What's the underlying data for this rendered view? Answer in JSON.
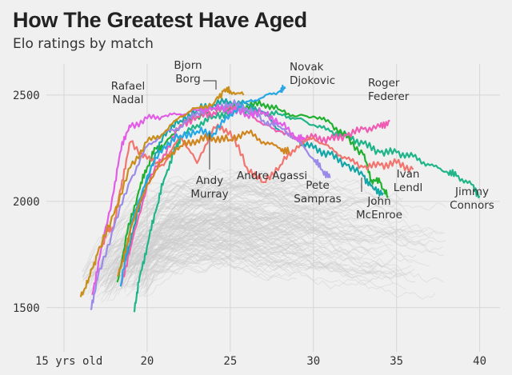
{
  "title": "How The Greatest Have Aged",
  "subtitle": "Elo ratings by match",
  "chart_data": {
    "type": "line",
    "title": "How The Greatest Have Aged",
    "subtitle": "Elo ratings by match",
    "xlabel": "",
    "ylabel": "",
    "xlim": [
      15,
      40.5
    ],
    "ylim": [
      1330,
      2590
    ],
    "xticks": [
      15,
      20,
      25,
      30,
      35,
      40
    ],
    "xtick_labels": [
      "15 yrs old",
      "20",
      "25",
      "30",
      "35",
      "40"
    ],
    "yticks": [
      1500,
      2000,
      2500
    ],
    "ytick_labels": [
      "1500",
      "2000",
      "2500"
    ],
    "grid": true,
    "background_series": {
      "name": "",
      "color": "#cccccc",
      "count": 150
    },
    "series": [
      {
        "name": "Jimmy Connors",
        "color": "#1fb589",
        "points": [
          [
            19.2,
            1480
          ],
          [
            19.5,
            1620
          ],
          [
            20,
            1790
          ],
          [
            20.5,
            1950
          ],
          [
            21,
            2100
          ],
          [
            21.6,
            2230
          ],
          [
            22,
            2300
          ],
          [
            23,
            2360
          ],
          [
            24,
            2400
          ],
          [
            25,
            2420
          ],
          [
            26,
            2430
          ],
          [
            27,
            2420
          ],
          [
            28,
            2410
          ],
          [
            29,
            2390
          ],
          [
            30,
            2360
          ],
          [
            31,
            2330
          ],
          [
            32,
            2310
          ],
          [
            33,
            2270
          ],
          [
            34,
            2230
          ],
          [
            35,
            2230
          ],
          [
            36,
            2210
          ],
          [
            37,
            2170
          ],
          [
            38,
            2140
          ],
          [
            38.6,
            2120
          ],
          [
            39.5,
            2080
          ],
          [
            40,
            2025
          ]
        ]
      },
      {
        "name": "Ivan Lendl",
        "color": "#21b02f",
        "points": [
          [
            18.2,
            1620
          ],
          [
            18.8,
            1850
          ],
          [
            19.5,
            2050
          ],
          [
            20,
            2160
          ],
          [
            20.5,
            2250
          ],
          [
            21,
            2260
          ],
          [
            22,
            2360
          ],
          [
            23,
            2400
          ],
          [
            24,
            2440
          ],
          [
            25,
            2440
          ],
          [
            26,
            2450
          ],
          [
            27,
            2460
          ],
          [
            28,
            2430
          ],
          [
            29,
            2400
          ],
          [
            30,
            2400
          ],
          [
            31,
            2370
          ],
          [
            32,
            2300
          ],
          [
            33,
            2220
          ],
          [
            33.5,
            2100
          ],
          [
            34,
            2090
          ],
          [
            34.5,
            2020
          ]
        ]
      },
      {
        "name": "John McEnroe",
        "color": "#15a6a8",
        "points": [
          [
            18.7,
            1720
          ],
          [
            19.2,
            1880
          ],
          [
            20,
            2100
          ],
          [
            21,
            2320
          ],
          [
            22,
            2380
          ],
          [
            23,
            2430
          ],
          [
            24,
            2460
          ],
          [
            25,
            2470
          ],
          [
            26,
            2460
          ],
          [
            27,
            2420
          ],
          [
            28,
            2330
          ],
          [
            29,
            2290
          ],
          [
            30,
            2250
          ],
          [
            31,
            2220
          ],
          [
            32,
            2170
          ],
          [
            33,
            2120
          ],
          [
            33.6,
            2060
          ],
          [
            34.2,
            2040
          ]
        ]
      },
      {
        "name": "Roger Federer",
        "color": "#ef5cb2",
        "points": [
          [
            18.4,
            1600
          ],
          [
            19,
            1780
          ],
          [
            20,
            2080
          ],
          [
            21,
            2220
          ],
          [
            22,
            2360
          ],
          [
            23,
            2400
          ],
          [
            24,
            2420
          ],
          [
            25,
            2450
          ],
          [
            26,
            2430
          ],
          [
            27,
            2360
          ],
          [
            28,
            2330
          ],
          [
            29,
            2290
          ],
          [
            30,
            2300
          ],
          [
            31,
            2290
          ],
          [
            32,
            2310
          ],
          [
            33,
            2340
          ],
          [
            34,
            2350
          ],
          [
            34.6,
            2380
          ]
        ]
      },
      {
        "name": "Andre Agassi",
        "color": "#f2746e",
        "points": [
          [
            17.2,
            1780
          ],
          [
            17.6,
            1860
          ],
          [
            18,
            1880
          ],
          [
            18.5,
            2100
          ],
          [
            19,
            2280
          ],
          [
            20,
            2200
          ],
          [
            21,
            2170
          ],
          [
            22,
            2310
          ],
          [
            23,
            2180
          ],
          [
            24,
            2350
          ],
          [
            25,
            2330
          ],
          [
            26,
            2160
          ],
          [
            27,
            2090
          ],
          [
            28,
            2170
          ],
          [
            29,
            2260
          ],
          [
            30,
            2300
          ],
          [
            31,
            2250
          ],
          [
            32,
            2200
          ],
          [
            33,
            2160
          ],
          [
            34,
            2170
          ],
          [
            35,
            2180
          ],
          [
            36,
            2150
          ]
        ]
      },
      {
        "name": "Pete Sampras",
        "color": "#9b8ae8",
        "points": [
          [
            16.6,
            1490
          ],
          [
            17,
            1630
          ],
          [
            18,
            1880
          ],
          [
            19,
            2100
          ],
          [
            20,
            2260
          ],
          [
            21,
            2320
          ],
          [
            22,
            2350
          ],
          [
            23,
            2420
          ],
          [
            24,
            2440
          ],
          [
            25,
            2460
          ],
          [
            26,
            2440
          ],
          [
            27,
            2380
          ],
          [
            28,
            2350
          ],
          [
            29,
            2290
          ],
          [
            30,
            2200
          ],
          [
            30.5,
            2150
          ],
          [
            31,
            2110
          ]
        ]
      },
      {
        "name": "Rafael Nadal",
        "color": "#e35ce6",
        "points": [
          [
            16.7,
            1560
          ],
          [
            17.2,
            1760
          ],
          [
            18,
            2050
          ],
          [
            18.5,
            2280
          ],
          [
            19,
            2350
          ],
          [
            20,
            2390
          ],
          [
            21,
            2400
          ],
          [
            22,
            2410
          ],
          [
            23,
            2430
          ],
          [
            24,
            2440
          ],
          [
            25,
            2430
          ],
          [
            26,
            2410
          ],
          [
            27,
            2420
          ],
          [
            28,
            2370
          ],
          [
            29,
            2300
          ],
          [
            29.5,
            2290
          ]
        ]
      },
      {
        "name": "Bjorn Borg",
        "color": "#c98f19",
        "points": [
          [
            16,
            1550
          ],
          [
            16.5,
            1640
          ],
          [
            17,
            1750
          ],
          [
            18,
            1940
          ],
          [
            19,
            2160
          ],
          [
            20,
            2280
          ],
          [
            21,
            2320
          ],
          [
            22,
            2400
          ],
          [
            23,
            2440
          ],
          [
            24,
            2460
          ],
          [
            24.6,
            2520
          ],
          [
            25,
            2520
          ],
          [
            25.8,
            2500
          ]
        ]
      },
      {
        "name": "Novak Djokovic",
        "color": "#27a8e6",
        "points": [
          [
            18.4,
            1600
          ],
          [
            19,
            1880
          ],
          [
            20,
            2120
          ],
          [
            21,
            2260
          ],
          [
            22,
            2310
          ],
          [
            23,
            2330
          ],
          [
            24,
            2320
          ],
          [
            25,
            2410
          ],
          [
            26,
            2470
          ],
          [
            27,
            2490
          ],
          [
            28,
            2520
          ],
          [
            28.3,
            2530
          ]
        ]
      },
      {
        "name": "Andy Murray",
        "color": "#d1851e",
        "points": [
          [
            18.2,
            1650
          ],
          [
            18.7,
            1760
          ],
          [
            19,
            1870
          ],
          [
            20,
            2080
          ],
          [
            21,
            2200
          ],
          [
            22,
            2260
          ],
          [
            23,
            2290
          ],
          [
            24,
            2300
          ],
          [
            25,
            2290
          ],
          [
            26,
            2330
          ],
          [
            27,
            2280
          ],
          [
            28,
            2250
          ],
          [
            28.6,
            2230
          ]
        ]
      }
    ],
    "annotations": [
      {
        "series": "Rafael Nadal",
        "lines": [
          "Rafael",
          "Nadal"
        ]
      },
      {
        "series": "Bjorn Borg",
        "lines": [
          "Bjorn",
          "Borg"
        ]
      },
      {
        "series": "Novak Djokovic",
        "lines": [
          "Novak",
          "Djokovic"
        ]
      },
      {
        "series": "Roger Federer",
        "lines": [
          "Roger",
          "Federer"
        ]
      },
      {
        "series": "Andy Murray",
        "lines": [
          "Andy",
          "Murray"
        ]
      },
      {
        "series": "Andre Agassi",
        "lines": [
          "Andre Agassi"
        ]
      },
      {
        "series": "Pete Sampras",
        "lines": [
          "Pete",
          "Sampras"
        ]
      },
      {
        "series": "John McEnroe",
        "lines": [
          "John",
          "McEnroe"
        ]
      },
      {
        "series": "Ivan Lendl",
        "lines": [
          "Ivan",
          "Lendl"
        ]
      },
      {
        "series": "Jimmy Connors",
        "lines": [
          "Jimmy",
          "Connors"
        ]
      }
    ]
  }
}
